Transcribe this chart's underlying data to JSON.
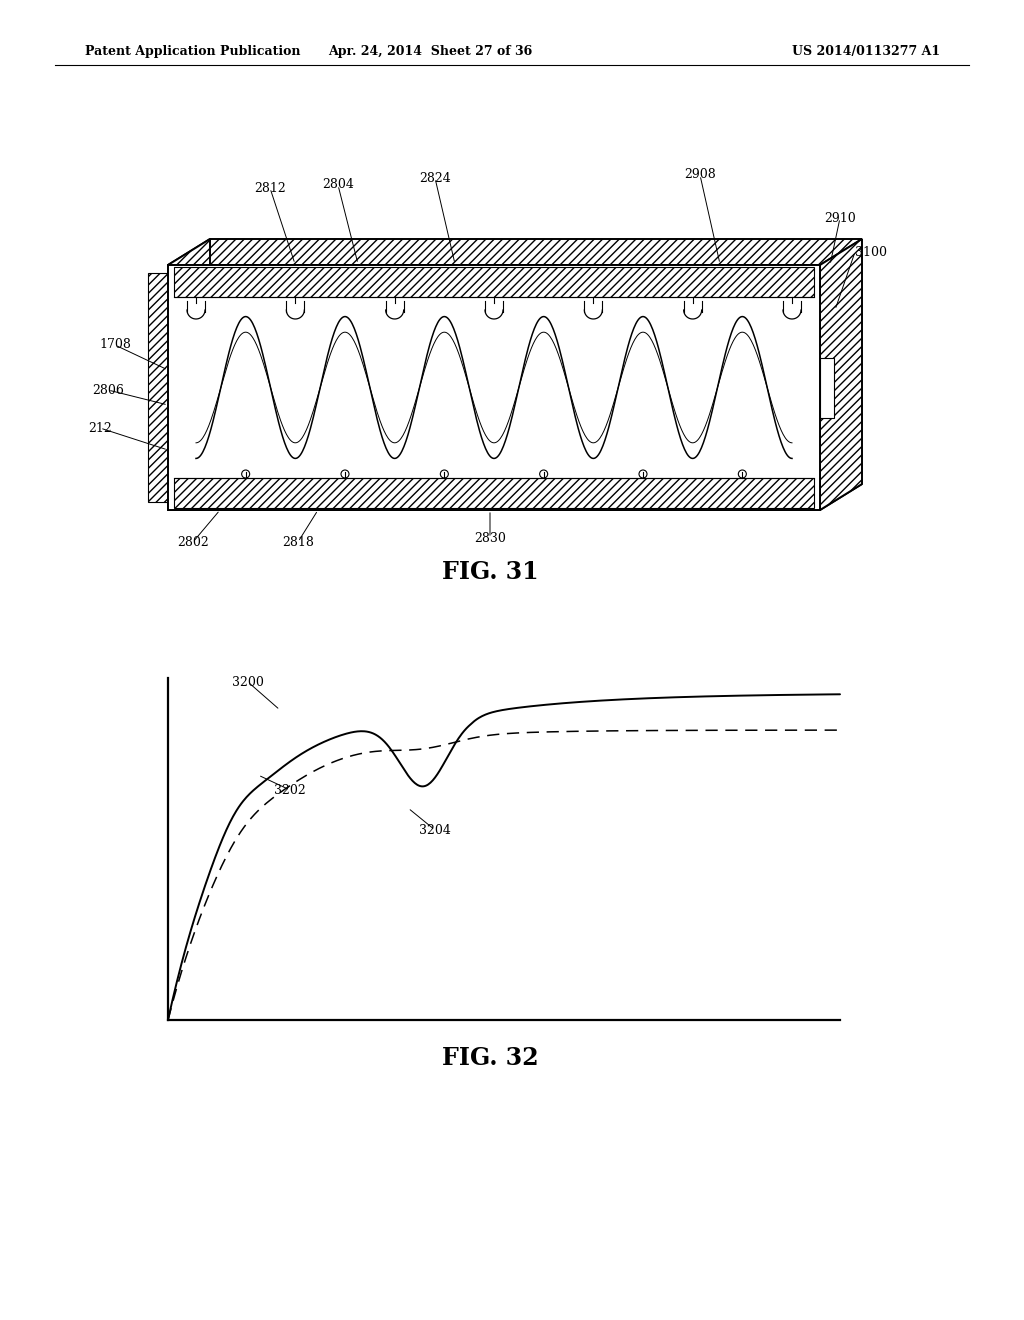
{
  "bg_color": "#ffffff",
  "header_left": "Patent Application Publication",
  "header_mid": "Apr. 24, 2014  Sheet 27 of 36",
  "header_right": "US 2014/0113277 A1",
  "fig31_title": "FIG. 31",
  "fig32_title": "FIG. 32"
}
